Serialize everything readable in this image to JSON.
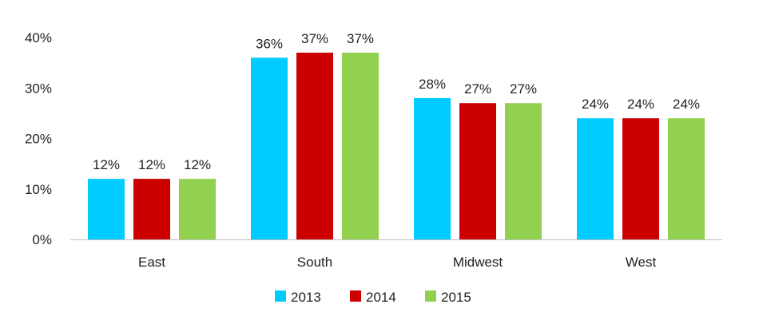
{
  "chart_data": {
    "type": "bar",
    "categories": [
      "East",
      "South",
      "Midwest",
      "West"
    ],
    "series": [
      {
        "name": "2013",
        "color": "#00CCFF",
        "values": [
          12,
          36,
          28,
          24
        ]
      },
      {
        "name": "2014",
        "color": "#CC0000",
        "values": [
          12,
          37,
          27,
          24
        ]
      },
      {
        "name": "2015",
        "color": "#92D050",
        "values": [
          12,
          37,
          27,
          24
        ]
      }
    ],
    "data_labels": [
      [
        "12%",
        "36%",
        "28%",
        "24%"
      ],
      [
        "12%",
        "37%",
        "27%",
        "24%"
      ],
      [
        "12%",
        "37%",
        "27%",
        "24%"
      ]
    ],
    "yticks": [
      0,
      10,
      20,
      30,
      40
    ],
    "ytick_labels": [
      "0%",
      "10%",
      "20%",
      "30%",
      "40%"
    ],
    "ylim": [
      0,
      40
    ],
    "grid": false,
    "legend": "bottom-center",
    "axis_color": "#BFBFBF"
  }
}
